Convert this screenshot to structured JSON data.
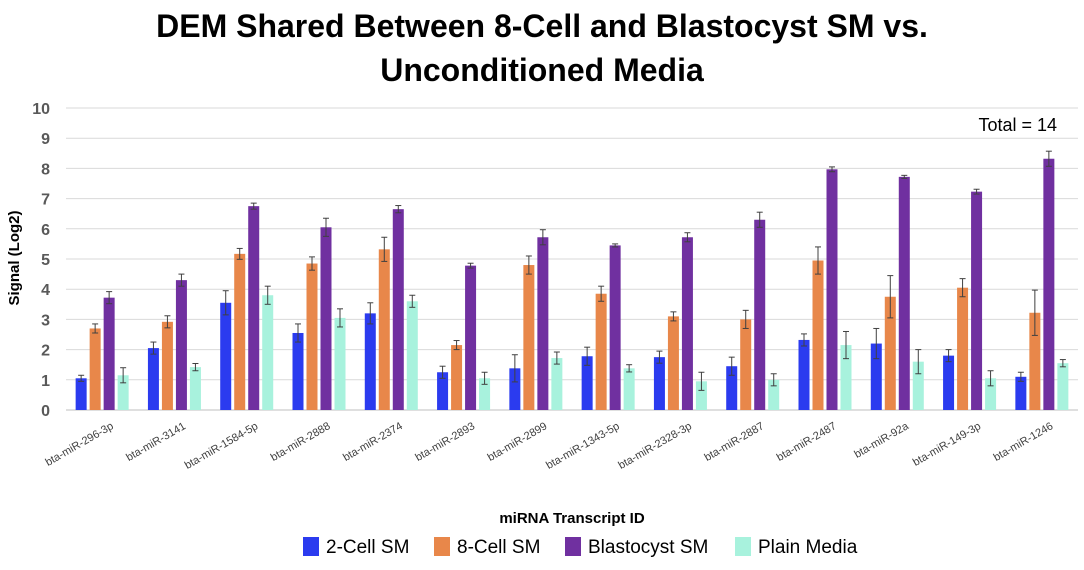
{
  "chart_data": {
    "type": "bar",
    "title_line1": "DEM Shared Between 8-Cell and Blastocyst SM vs.",
    "title_line2": "Unconditioned Media",
    "xlabel": "miRNA Transcript ID",
    "ylabel": "Signal (Log2)",
    "ylim": [
      0,
      10
    ],
    "yticks": [
      0,
      1,
      2,
      3,
      4,
      5,
      6,
      7,
      8,
      9,
      10
    ],
    "annotation": "Total = 14",
    "legend_position": "bottom",
    "categories": [
      "bta-miR-296-3p",
      "bta-miR-3141",
      "bta-miR-1584-5p",
      "bta-miR-2888",
      "bta-miR-2374",
      "bta-miR-2893",
      "bta-miR-2899",
      "bta-miR-1343-5p",
      "bta-miR-2328-3p",
      "bta-miR-2887",
      "bta-miR-2487",
      "bta-miR-92a",
      "bta-miR-149-3p",
      "bta-miR-1246"
    ],
    "series": [
      {
        "name": "2-Cell SM",
        "color": "#2B3BEF",
        "values": [
          1.05,
          2.05,
          3.55,
          2.55,
          3.2,
          1.25,
          1.38,
          1.78,
          1.75,
          1.45,
          2.32,
          2.2,
          1.8,
          1.1
        ],
        "errors": [
          0.1,
          0.2,
          0.4,
          0.3,
          0.35,
          0.2,
          0.45,
          0.3,
          0.2,
          0.3,
          0.2,
          0.5,
          0.2,
          0.15
        ]
      },
      {
        "name": "8-Cell SM",
        "color": "#E8874A",
        "values": [
          2.7,
          2.92,
          5.17,
          4.85,
          5.32,
          2.15,
          4.8,
          3.85,
          3.1,
          3.0,
          4.95,
          3.75,
          4.05,
          3.22
        ],
        "errors": [
          0.15,
          0.2,
          0.18,
          0.22,
          0.4,
          0.15,
          0.3,
          0.25,
          0.15,
          0.3,
          0.45,
          0.7,
          0.3,
          0.75
        ]
      },
      {
        "name": "Blastocyst SM",
        "color": "#7030A0",
        "values": [
          3.72,
          4.3,
          6.75,
          6.05,
          6.65,
          4.78,
          5.72,
          5.45,
          5.72,
          6.3,
          7.97,
          7.72,
          7.23,
          8.32
        ],
        "errors": [
          0.2,
          0.2,
          0.1,
          0.3,
          0.12,
          0.08,
          0.25,
          0.05,
          0.15,
          0.25,
          0.08,
          0.05,
          0.08,
          0.25
        ]
      },
      {
        "name": "Plain Media",
        "color": "#A8F2DD",
        "values": [
          1.15,
          1.42,
          3.8,
          3.05,
          3.6,
          1.05,
          1.72,
          1.38,
          0.95,
          1.0,
          2.15,
          1.6,
          1.05,
          1.55
        ],
        "errors": [
          0.25,
          0.12,
          0.3,
          0.3,
          0.2,
          0.2,
          0.2,
          0.12,
          0.3,
          0.2,
          0.45,
          0.4,
          0.25,
          0.12
        ]
      }
    ]
  }
}
